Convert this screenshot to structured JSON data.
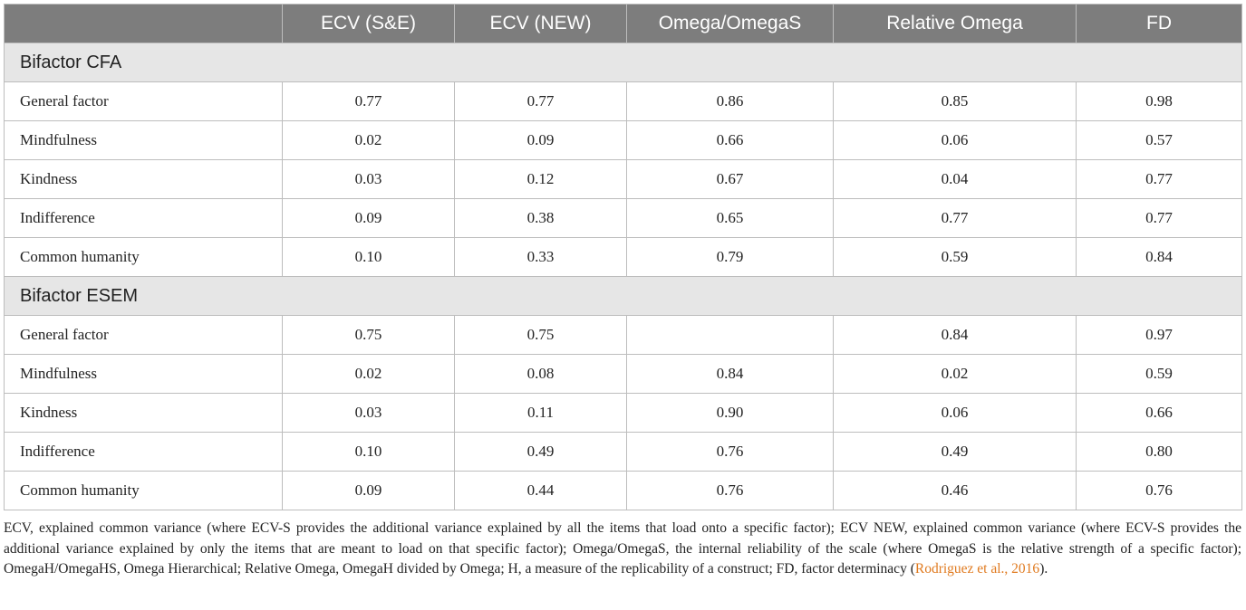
{
  "columns": [
    "",
    "ECV (S&E)",
    "ECV (NEW)",
    "Omega/OmegaS",
    "Relative Omega",
    "FD"
  ],
  "sections": [
    {
      "title": "Bifactor CFA",
      "rows": [
        {
          "label": "General factor",
          "values": [
            "0.77",
            "0.77",
            "0.86",
            "0.85",
            "0.98"
          ]
        },
        {
          "label": "Mindfulness",
          "values": [
            "0.02",
            "0.09",
            "0.66",
            "0.06",
            "0.57"
          ]
        },
        {
          "label": "Kindness",
          "values": [
            "0.03",
            "0.12",
            "0.67",
            "0.04",
            "0.77"
          ]
        },
        {
          "label": "Indifference",
          "values": [
            "0.09",
            "0.38",
            "0.65",
            "0.77",
            "0.77"
          ]
        },
        {
          "label": "Common humanity",
          "values": [
            "0.10",
            "0.33",
            "0.79",
            "0.59",
            "0.84"
          ]
        }
      ]
    },
    {
      "title": "Bifactor ESEM",
      "rows": [
        {
          "label": "General factor",
          "values": [
            "0.75",
            "0.75",
            "",
            "0.84",
            "0.97"
          ]
        },
        {
          "label": "Mindfulness",
          "values": [
            "0.02",
            "0.08",
            "0.84",
            "0.02",
            "0.59"
          ]
        },
        {
          "label": "Kindness",
          "values": [
            "0.03",
            "0.11",
            "0.90",
            "0.06",
            "0.66"
          ]
        },
        {
          "label": "Indifference",
          "values": [
            "0.10",
            "0.49",
            "0.76",
            "0.49",
            "0.80"
          ]
        },
        {
          "label": "Common humanity",
          "values": [
            "0.09",
            "0.44",
            "0.76",
            "0.46",
            "0.76"
          ]
        }
      ]
    }
  ],
  "footnote": {
    "text": "ECV, explained common variance (where ECV-S provides the additional variance explained by all the items that load onto a specific factor); ECV NEW, explained common variance (where ECV-S provides the additional variance explained by only the items that are meant to load on that specific factor); Omega/OmegaS, the internal reliability of the scale (where OmegaS is the relative strength of a specific factor); OmegaH/OmegaHS, Omega Hierarchical; Relative Omega, OmegaH divided by Omega; H, a measure of the replicability of a construct; FD, factor determinacy (",
    "reference": "Rodriguez et al., 2016",
    "end": ")."
  }
}
